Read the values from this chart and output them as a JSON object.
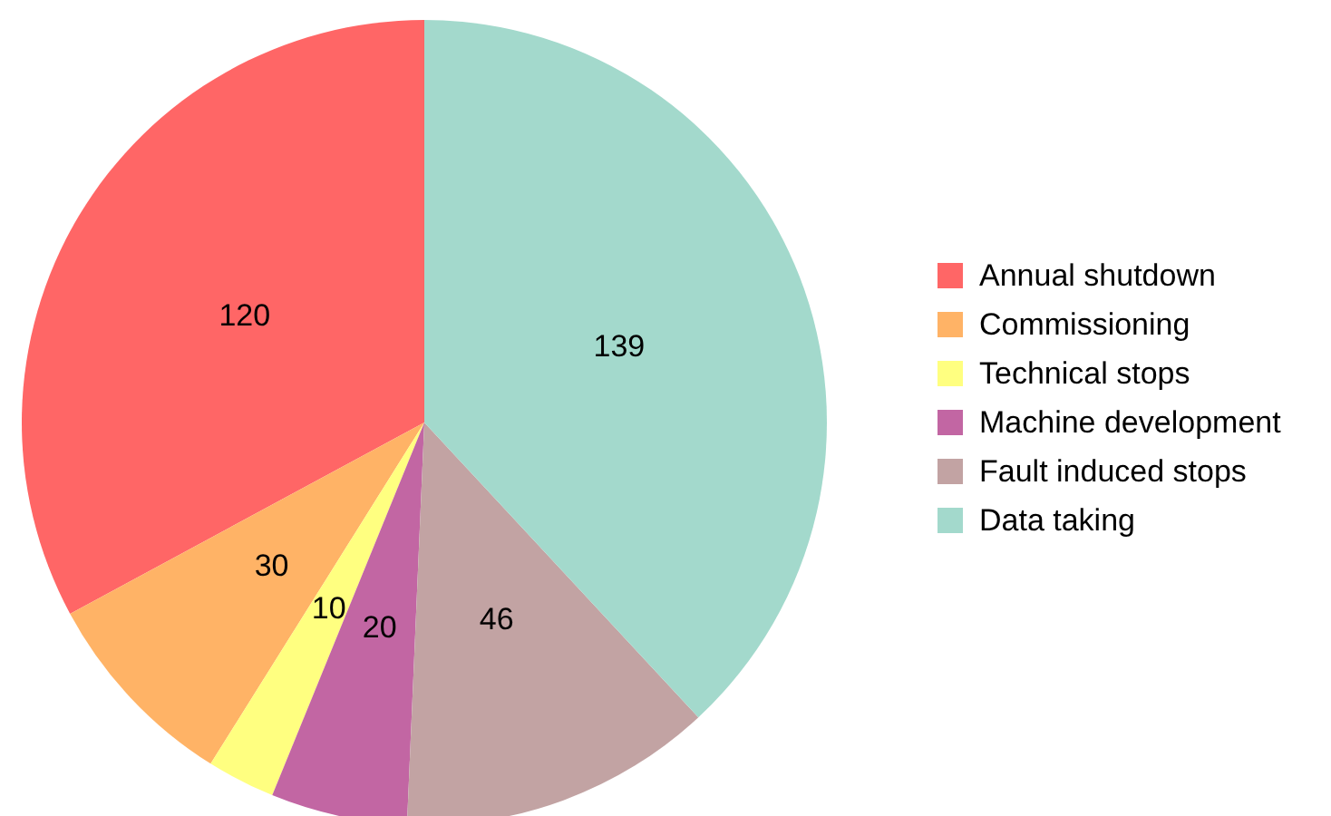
{
  "chart_data": {
    "type": "pie",
    "categories": [
      "Annual shutdown",
      "Commissioning",
      "Technical stops",
      "Machine development",
      "Fault induced stops",
      "Data taking"
    ],
    "values": [
      120,
      30,
      10,
      20,
      46,
      139
    ],
    "colors": [
      "#ff6666",
      "#ffb366",
      "#ffff80",
      "#c266a3",
      "#c2a3a3",
      "#a3d9cc"
    ],
    "data_labels": true,
    "legend": "right"
  }
}
